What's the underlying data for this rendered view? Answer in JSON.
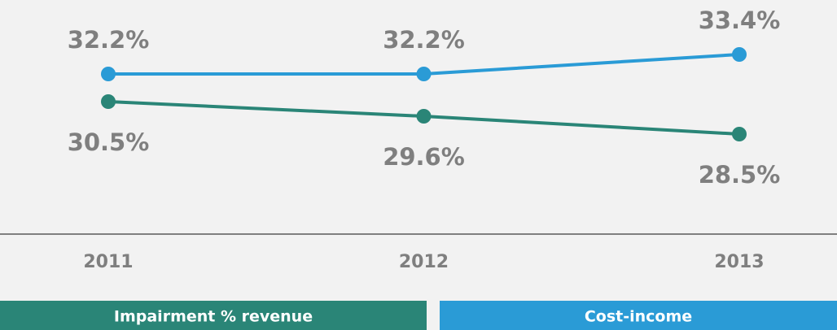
{
  "chart_data": {
    "type": "line",
    "categories": [
      "2011",
      "2012",
      "2013"
    ],
    "series": [
      {
        "name": "Impairment % revenue",
        "color": "#2a8577",
        "values": [
          30.5,
          29.6,
          28.5
        ],
        "value_labels": [
          "30.5%",
          "29.6%",
          "28.5%"
        ]
      },
      {
        "name": "Cost-income",
        "color": "#2a9bd6",
        "values": [
          32.2,
          32.2,
          33.4
        ],
        "value_labels": [
          "32.2%",
          "32.2%",
          "33.4%"
        ]
      }
    ],
    "ylim": [
      22.5,
      36.5
    ]
  }
}
